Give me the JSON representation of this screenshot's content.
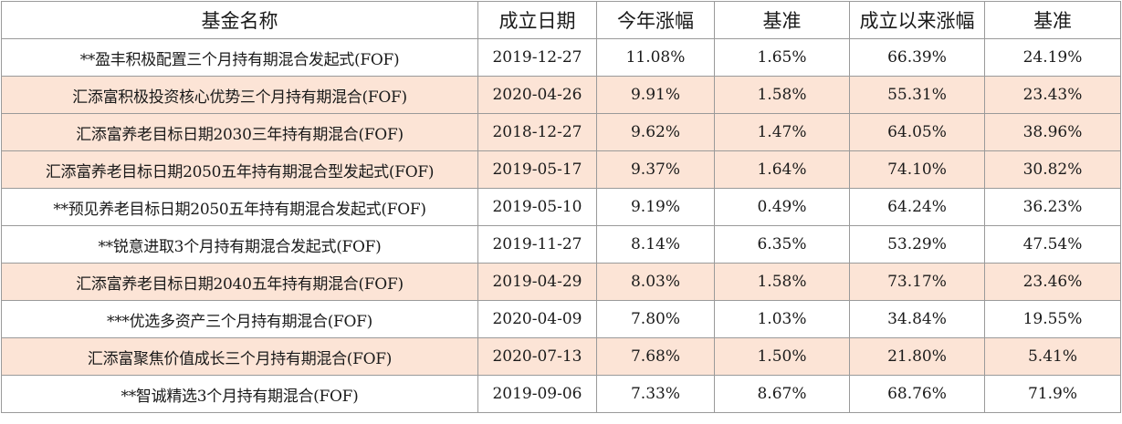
{
  "table": {
    "headers": [
      "基金名称",
      "成立日期",
      "今年涨幅",
      "基准",
      "成立以来涨幅",
      "基准"
    ],
    "row_highlight_color": "#fce4d6",
    "rows": [
      {
        "name": "**盈丰积极配置三个月持有期混合发起式(FOF)",
        "date": "2019-12-27",
        "ytd": "11.08%",
        "benchmark1": "1.65%",
        "since_inception": "66.39%",
        "benchmark2": "24.19%",
        "highlight": false
      },
      {
        "name": "汇添富积极投资核心优势三个月持有期混合(FOF)",
        "date": "2020-04-26",
        "ytd": "9.91%",
        "benchmark1": "1.58%",
        "since_inception": "55.31%",
        "benchmark2": "23.43%",
        "highlight": true
      },
      {
        "name": "汇添富养老目标日期2030三年持有期混合(FOF)",
        "date": "2018-12-27",
        "ytd": "9.62%",
        "benchmark1": "1.47%",
        "since_inception": "64.05%",
        "benchmark2": "38.96%",
        "highlight": true
      },
      {
        "name": "汇添富养老目标日期2050五年持有期混合型发起式(FOF)",
        "date": "2019-05-17",
        "ytd": "9.37%",
        "benchmark1": "1.64%",
        "since_inception": "74.10%",
        "benchmark2": "30.82%",
        "highlight": true
      },
      {
        "name": "**预见养老目标日期2050五年持有期混合发起式(FOF)",
        "date": "2019-05-10",
        "ytd": "9.19%",
        "benchmark1": "0.49%",
        "since_inception": "64.24%",
        "benchmark2": "36.23%",
        "highlight": false
      },
      {
        "name": "**锐意进取3个月持有期混合发起式(FOF)",
        "date": "2019-11-27",
        "ytd": "8.14%",
        "benchmark1": "6.35%",
        "since_inception": "53.29%",
        "benchmark2": "47.54%",
        "highlight": false
      },
      {
        "name": "汇添富养老目标日期2040五年持有期混合(FOF)",
        "date": "2019-04-29",
        "ytd": "8.03%",
        "benchmark1": "1.58%",
        "since_inception": "73.17%",
        "benchmark2": "23.46%",
        "highlight": true
      },
      {
        "name": "***优选多资产三个月持有期混合(FOF)",
        "date": "2020-04-09",
        "ytd": "7.80%",
        "benchmark1": "1.03%",
        "since_inception": "34.84%",
        "benchmark2": "19.55%",
        "highlight": false
      },
      {
        "name": "汇添富聚焦价值成长三个月持有期混合(FOF)",
        "date": "2020-07-13",
        "ytd": "7.68%",
        "benchmark1": "1.50%",
        "since_inception": "21.80%",
        "benchmark2": "5.41%",
        "highlight": true
      },
      {
        "name": "**智诚精选3个月持有期混合(FOF)",
        "date": "2019-09-06",
        "ytd": "7.33%",
        "benchmark1": "8.67%",
        "since_inception": "68.76%",
        "benchmark2": "71.9%",
        "highlight": false
      }
    ]
  }
}
